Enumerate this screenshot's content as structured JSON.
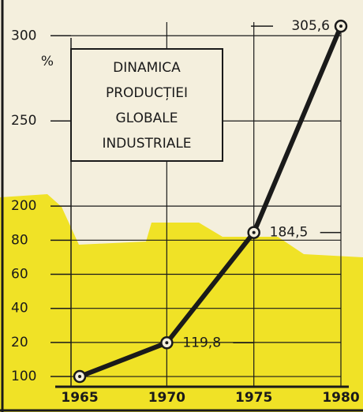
{
  "chart_data": {
    "type": "line",
    "title": [
      "DINAMICA",
      "PRODUCȚIEI",
      "GLOBALE",
      "INDUSTRIALE"
    ],
    "y_unit": "%",
    "x": [
      1965,
      1970,
      1975,
      1980
    ],
    "series": [
      {
        "color": "#1a1a1a",
        "values": [
          100,
          119.8,
          184.5,
          305.6
        ],
        "value_labels": [
          null,
          "119,8",
          "184,5",
          "305,6"
        ]
      }
    ],
    "xlim": [
      1964.5,
      1980
    ],
    "xticks": [
      1965,
      1970,
      1975,
      1980
    ],
    "ylim": [
      94,
      308
    ],
    "yticks": [
      100,
      {
        "value": 120,
        "label": "20"
      },
      {
        "value": 140,
        "label": "40"
      },
      {
        "value": 160,
        "label": "60"
      },
      {
        "value": 180,
        "label": "80"
      },
      200,
      250,
      300
    ],
    "grid": true
  }
}
